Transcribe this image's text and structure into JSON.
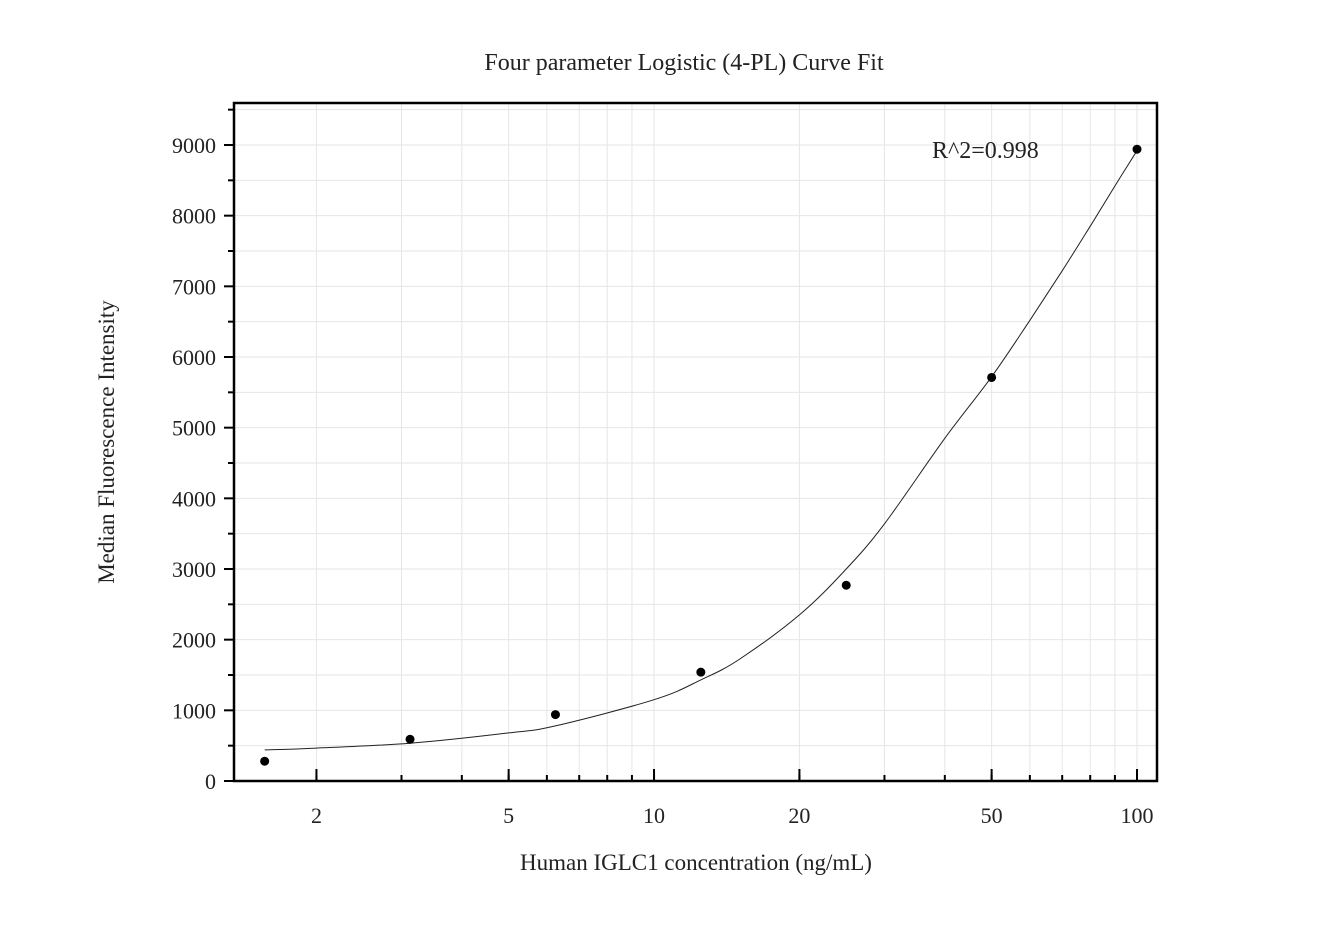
{
  "chart_data": {
    "type": "scatter",
    "title": "Four parameter Logistic (4-PL) Curve Fit",
    "xlabel": "Human IGLC1 concentration (ng/mL)",
    "ylabel": "Median Fluorescence Intensity",
    "x_scale": "log",
    "xlim": [
      1.35,
      110
    ],
    "ylim": [
      0,
      9000
    ],
    "x_ticks": [
      2,
      5,
      10,
      20,
      50,
      100
    ],
    "x_tick_labels": [
      "2",
      "5",
      "10",
      "20",
      "50",
      "100"
    ],
    "y_ticks": [
      0,
      1000,
      2000,
      3000,
      4000,
      5000,
      6000,
      7000,
      8000,
      9000
    ],
    "y_tick_labels": [
      "0",
      "1000",
      "2000",
      "3000",
      "4000",
      "5000",
      "6000",
      "7000",
      "8000",
      "9000"
    ],
    "grid": true,
    "annotation": "R^2=0.998",
    "points": {
      "x": [
        1.5625,
        3.125,
        6.25,
        12.5,
        25,
        50,
        100
      ],
      "y": [
        280,
        590,
        940,
        1540,
        2770,
        5710,
        8940
      ]
    },
    "fit_curve": {
      "model": "4PL",
      "x": [
        1.5625,
        2,
        3.125,
        5,
        6.25,
        10,
        12.5,
        15,
        20,
        25,
        30,
        40,
        50,
        60,
        70,
        80,
        90,
        100
      ],
      "y": [
        440,
        465,
        535,
        680,
        780,
        1150,
        1430,
        1720,
        2350,
        3000,
        3640,
        4850,
        5720,
        6520,
        7220,
        7850,
        8420,
        8920
      ]
    },
    "colors": {
      "points": "#000000",
      "curve": "#222222",
      "grid": "#e6e6e6"
    }
  }
}
